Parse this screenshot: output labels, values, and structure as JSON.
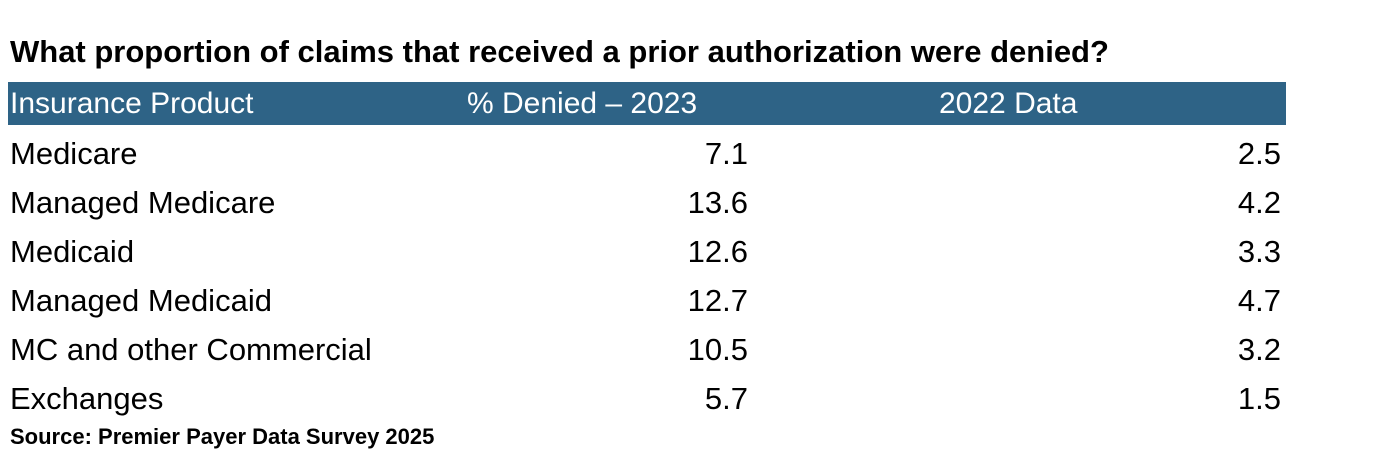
{
  "chart_data": {
    "type": "table",
    "title": "What proportion of claims that received a prior authorization were denied?",
    "columns": [
      "Insurance Product",
      "% Denied – 2023",
      "2022 Data"
    ],
    "rows": [
      {
        "product": "Medicare",
        "denied_2023": "7.1",
        "data_2022": "2.5"
      },
      {
        "product": "Managed Medicare",
        "denied_2023": "13.6",
        "data_2022": "4.2"
      },
      {
        "product": "Medicaid",
        "denied_2023": "12.6",
        "data_2022": "3.3"
      },
      {
        "product": "Managed Medicaid",
        "denied_2023": "12.7",
        "data_2022": "4.7"
      },
      {
        "product": "MC and other Commercial",
        "denied_2023": "10.5",
        "data_2022": "3.2"
      },
      {
        "product": "Exchanges",
        "denied_2023": "5.7",
        "data_2022": "1.5"
      }
    ],
    "source": "Source: Premier Payer Data Survey 2025",
    "header_color": "#2e6386"
  }
}
